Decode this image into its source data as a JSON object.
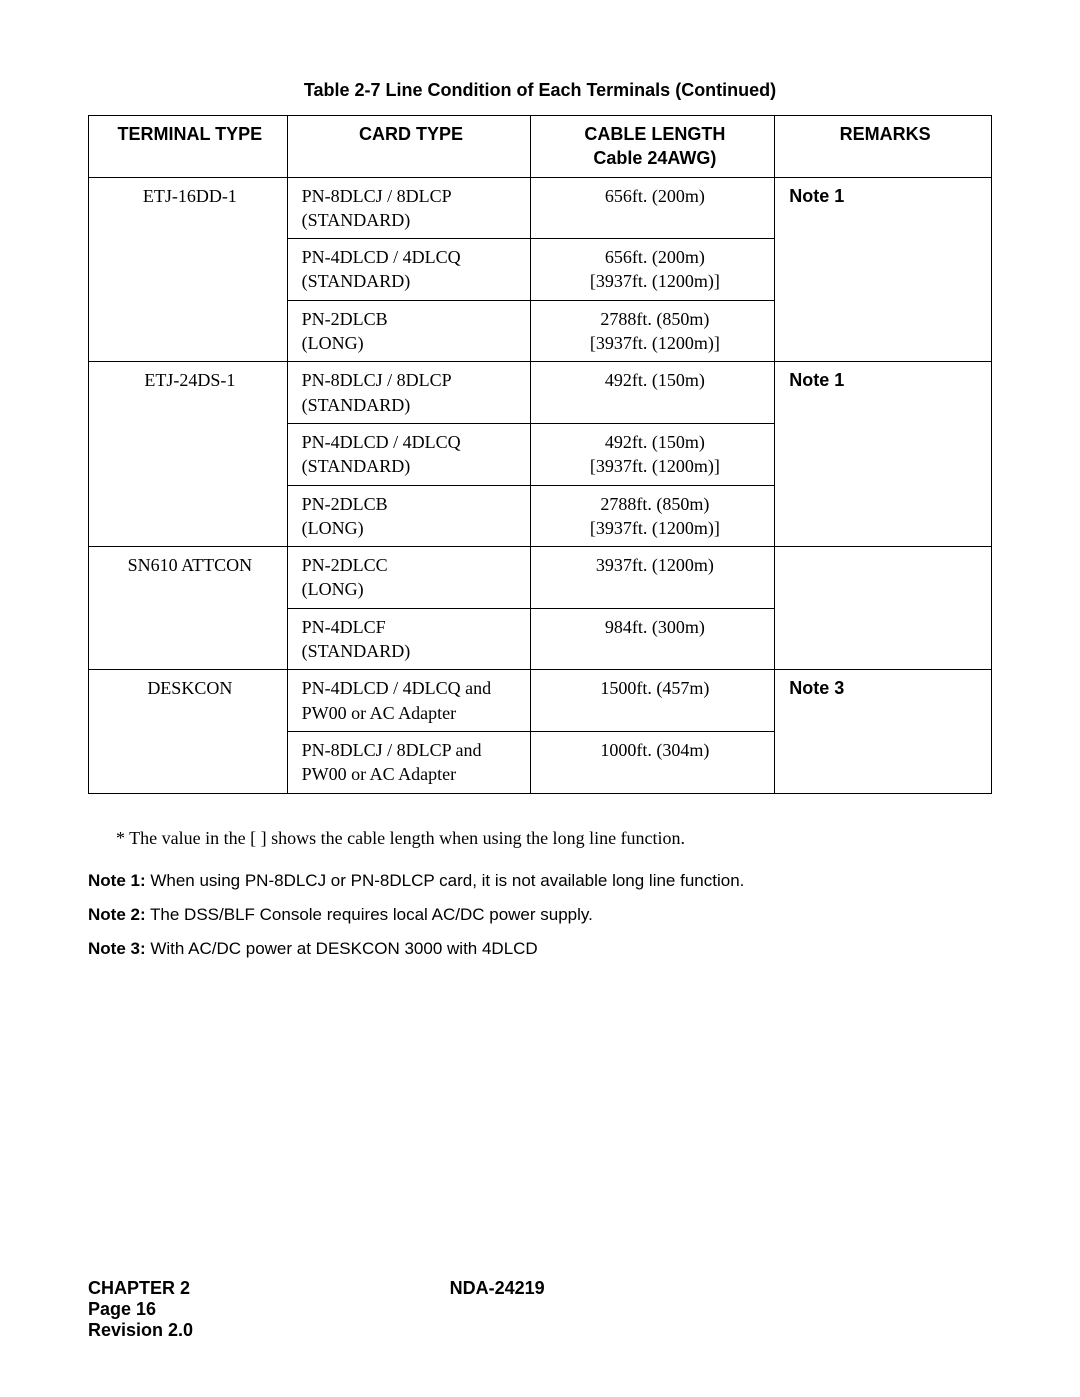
{
  "title": "Table 2-7  Line Condition of Each Terminals (Continued)",
  "headers": {
    "terminal": "TERMINAL TYPE",
    "card": "CARD TYPE",
    "cable1": "CABLE LENGTH",
    "cable2": "Cable 24AWG)",
    "remarks": "REMARKS"
  },
  "groups": [
    {
      "terminal": "ETJ-16DD-1",
      "remarks": "Note 1",
      "rows": [
        {
          "card": "PN-8DLCJ / 8DLCP\n(STANDARD)",
          "cable": "656ft. (200m)"
        },
        {
          "card": "PN-4DLCD / 4DLCQ\n(STANDARD)",
          "cable": "656ft. (200m)\n[3937ft. (1200m)]"
        },
        {
          "card": "PN-2DLCB\n(LONG)",
          "cable": "2788ft. (850m)\n[3937ft. (1200m)]"
        }
      ]
    },
    {
      "terminal": "ETJ-24DS-1",
      "remarks": "Note 1",
      "rows": [
        {
          "card": "PN-8DLCJ / 8DLCP\n(STANDARD)",
          "cable": "492ft. (150m)"
        },
        {
          "card": "PN-4DLCD / 4DLCQ\n(STANDARD)",
          "cable": "492ft. (150m)\n[3937ft. (1200m)]"
        },
        {
          "card": "PN-2DLCB\n(LONG)",
          "cable": "2788ft. (850m)\n[3937ft. (1200m)]"
        }
      ]
    },
    {
      "terminal": "SN610 ATTCON",
      "remarks": "",
      "rows": [
        {
          "card": "PN-2DLCC\n(LONG)",
          "cable": "3937ft. (1200m)"
        },
        {
          "card": "PN-4DLCF\n(STANDARD)",
          "cable": "984ft. (300m)"
        }
      ]
    },
    {
      "terminal": "DESKCON",
      "remarks": "Note 3",
      "rows": [
        {
          "card": "PN-4DLCD / 4DLCQ and\nPW00 or AC Adapter",
          "cable": "1500ft. (457m)"
        },
        {
          "card": "PN-8DLCJ / 8DLCP and\nPW00 or AC Adapter",
          "cable": "1000ft. (304m)"
        }
      ]
    }
  ],
  "asterisk": "*  The value in the [   ] shows the cable length when using the long line function.",
  "notes": [
    {
      "label": "Note 1:",
      "text": " When using PN-8DLCJ or PN-8DLCP card, it is not available long line function."
    },
    {
      "label": "Note 2:",
      "text": " The DSS/BLF Console requires local AC/DC power supply."
    },
    {
      "label": "Note 3:",
      "text": " With AC/DC power at DESKCON 3000  with 4DLCD"
    }
  ],
  "footer": {
    "chapter": "CHAPTER 2",
    "doc": "NDA-24219",
    "page": "Page 16",
    "rev": "Revision 2.0"
  }
}
